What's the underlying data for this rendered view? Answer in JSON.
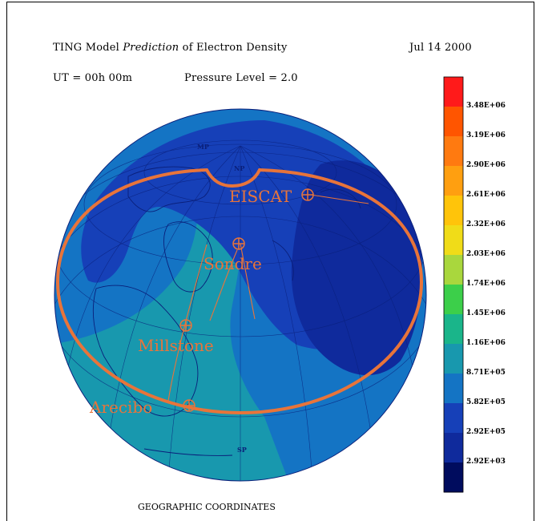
{
  "header": {
    "title_prefix": "TING Model ",
    "title_italic": "Prediction",
    "title_suffix": " of Electron Density",
    "date": "Jul 14 2000",
    "ut": "UT = 00h 00m",
    "pressure_level": "Pressure Level =  2.0"
  },
  "footer": {
    "coordinates": "GEOGRAPHIC COORDINATES"
  },
  "map_labels": {
    "north_pole": "NP",
    "magnetic_pole": "MP",
    "south_pole": "SP"
  },
  "sites": [
    {
      "name": "EISCAT"
    },
    {
      "name": "Sondre"
    },
    {
      "name": "Millstone"
    },
    {
      "name": "Arecibo"
    }
  ],
  "colorbar": {
    "labels": [
      "3.48E+06",
      "3.19E+06",
      "2.90E+06",
      "2.61E+06",
      "2.32E+06",
      "2.03E+06",
      "1.74E+06",
      "1.45E+06",
      "1.16E+06",
      "8.71E+05",
      "5.82E+05",
      "2.92E+05",
      "2.92E+03"
    ],
    "colors": [
      "#ff1a1a",
      "#ff5500",
      "#ff7a10",
      "#ff9f10",
      "#ffc40a",
      "#f0dc18",
      "#a9d73d",
      "#3ccf4a",
      "#1ab58a",
      "#1898ae",
      "#1474c4",
      "#1640b8",
      "#0f2a9c",
      "#000c5e"
    ]
  },
  "colors": {
    "site_marker": "#e8743a",
    "coverage_outline": "#e8743a",
    "map_lines": "#0a1f7a"
  }
}
